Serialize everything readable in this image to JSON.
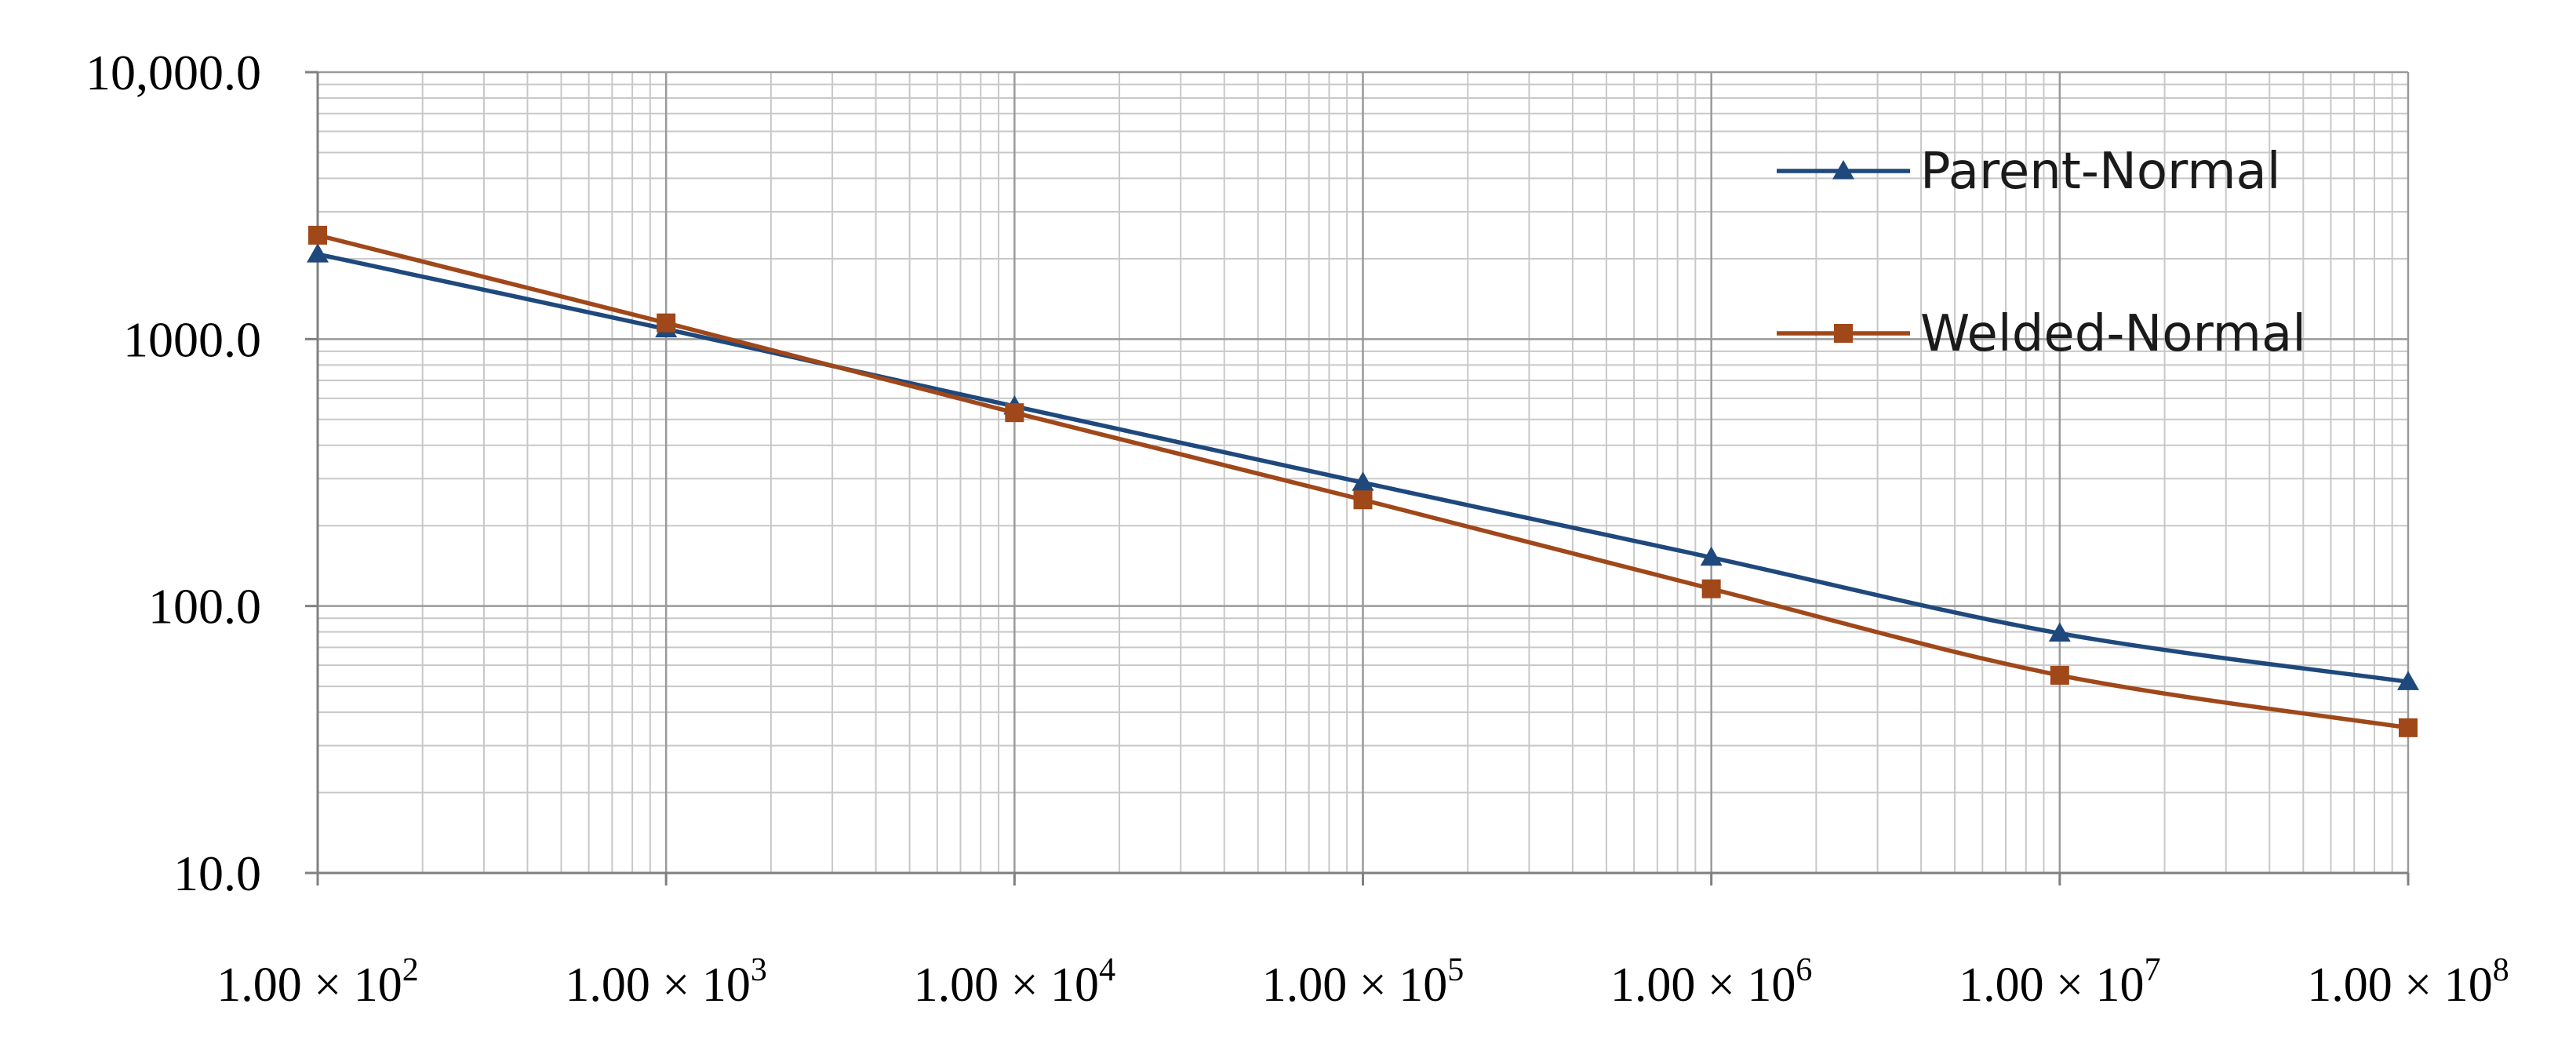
{
  "chart_data": {
    "type": "line",
    "xscale": "log",
    "yscale": "log",
    "xlim": [
      100,
      100000000
    ],
    "ylim": [
      10,
      10000
    ],
    "grid": true,
    "legend_placement": "top-right",
    "title": "",
    "xlabel": "",
    "ylabel": "",
    "x_tick_labels": [
      {
        "mantissa": "1.00 × 10",
        "exp": "2"
      },
      {
        "mantissa": "1.00 × 10",
        "exp": "3"
      },
      {
        "mantissa": "1.00 × 10",
        "exp": "4"
      },
      {
        "mantissa": "1.00 × 10",
        "exp": "5"
      },
      {
        "mantissa": "1.00 × 10",
        "exp": "6"
      },
      {
        "mantissa": "1.00 × 10",
        "exp": "7"
      },
      {
        "mantissa": "1.00 × 10",
        "exp": "8"
      }
    ],
    "y_tick_labels": [
      "10.0",
      "100.0",
      "1000.0",
      "10,000.0"
    ],
    "x": [
      100,
      1000,
      10000,
      100000,
      1000000,
      10000000,
      100000000
    ],
    "series": [
      {
        "name": "Parent-Normal",
        "color": "#1f497d",
        "marker": "triangle",
        "values": [
          2080,
          1090,
          560,
          290,
          152,
          79,
          52
        ]
      },
      {
        "name": "Welded-Normal",
        "color": "#a0481a",
        "marker": "square",
        "values": [
          2450,
          1150,
          530,
          250,
          116,
          55,
          35
        ]
      }
    ]
  }
}
